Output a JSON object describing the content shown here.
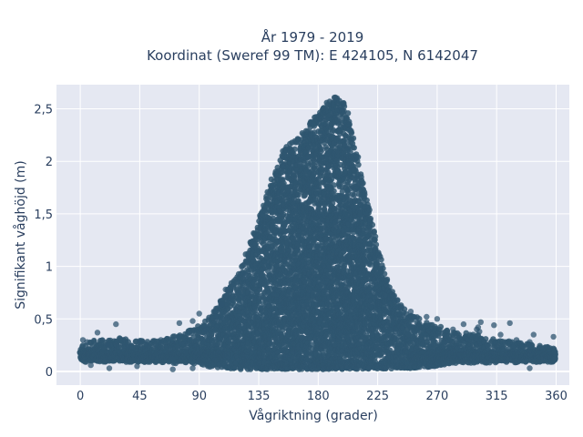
{
  "chart_data": {
    "type": "scatter",
    "title_lines": [
      "År 1979 - 2019",
      "Koordinat (Sweref 99 TM): E 424105, N 6142047"
    ],
    "xlabel": "Vågriktning (grader)",
    "ylabel": "Signifikant våghöjd (m)",
    "xlim": [
      -18,
      370
    ],
    "ylim": [
      -0.13,
      2.73
    ],
    "x_ticks": [
      0,
      45,
      90,
      135,
      180,
      225,
      270,
      315,
      360
    ],
    "x_tick_labels": [
      "0",
      "45",
      "90",
      "135",
      "180",
      "225",
      "270",
      "315",
      "360"
    ],
    "y_ticks": [
      0,
      0.5,
      1,
      1.5,
      2,
      2.5
    ],
    "y_tick_labels": [
      "0",
      "0,5",
      "1",
      "1,5",
      "2",
      "2,5"
    ],
    "grid": true,
    "marker_color": "#2f5670",
    "plot_background": "#e5e8f2",
    "envelope_upper": [
      [
        0,
        0.24
      ],
      [
        10,
        0.3
      ],
      [
        20,
        0.3
      ],
      [
        30,
        0.32
      ],
      [
        45,
        0.3
      ],
      [
        60,
        0.3
      ],
      [
        75,
        0.35
      ],
      [
        90,
        0.45
      ],
      [
        100,
        0.55
      ],
      [
        110,
        0.75
      ],
      [
        120,
        0.95
      ],
      [
        128,
        1.2
      ],
      [
        135,
        1.45
      ],
      [
        140,
        1.65
      ],
      [
        145,
        1.85
      ],
      [
        150,
        2.0
      ],
      [
        155,
        2.15
      ],
      [
        160,
        2.2
      ],
      [
        165,
        2.25
      ],
      [
        170,
        2.3
      ],
      [
        175,
        2.4
      ],
      [
        180,
        2.45
      ],
      [
        185,
        2.55
      ],
      [
        190,
        2.6
      ],
      [
        195,
        2.62
      ],
      [
        200,
        2.55
      ],
      [
        205,
        2.35
      ],
      [
        210,
        2.05
      ],
      [
        215,
        1.75
      ],
      [
        220,
        1.45
      ],
      [
        225,
        1.2
      ],
      [
        230,
        0.95
      ],
      [
        235,
        0.8
      ],
      [
        240,
        0.68
      ],
      [
        245,
        0.6
      ],
      [
        250,
        0.55
      ],
      [
        260,
        0.48
      ],
      [
        270,
        0.45
      ],
      [
        280,
        0.38
      ],
      [
        290,
        0.37
      ],
      [
        300,
        0.35
      ],
      [
        315,
        0.3
      ],
      [
        330,
        0.28
      ],
      [
        345,
        0.25
      ],
      [
        360,
        0.22
      ]
    ],
    "envelope_lower": [
      [
        0,
        0.09
      ],
      [
        45,
        0.09
      ],
      [
        90,
        0.07
      ],
      [
        100,
        0.04
      ],
      [
        120,
        0.02
      ],
      [
        180,
        0.02
      ],
      [
        250,
        0.03
      ],
      [
        270,
        0.05
      ],
      [
        290,
        0.08
      ],
      [
        360,
        0.09
      ]
    ],
    "outliers": [
      [
        27,
        0.45
      ],
      [
        13,
        0.37
      ],
      [
        2,
        0.3
      ],
      [
        5,
        0.28
      ],
      [
        21,
        0.25
      ],
      [
        36,
        0.25
      ],
      [
        45,
        0.28
      ],
      [
        50,
        0.26
      ],
      [
        61,
        0.3
      ],
      [
        75,
        0.46
      ],
      [
        85,
        0.48
      ],
      [
        90,
        0.55
      ],
      [
        95,
        0.4
      ],
      [
        107,
        0.64
      ],
      [
        110,
        0.78
      ],
      [
        112,
        0.78
      ],
      [
        125,
        0.92
      ],
      [
        240,
        0.68
      ],
      [
        250,
        0.57
      ],
      [
        262,
        0.52
      ],
      [
        270,
        0.5
      ],
      [
        282,
        0.4
      ],
      [
        290,
        0.45
      ],
      [
        300,
        0.4
      ],
      [
        301,
        0.42
      ],
      [
        302,
        0.38
      ],
      [
        303,
        0.47
      ],
      [
        313,
        0.44
      ],
      [
        318,
        0.35
      ],
      [
        325,
        0.46
      ],
      [
        330,
        0.3
      ],
      [
        340,
        0.28
      ],
      [
        343,
        0.35
      ],
      [
        358,
        0.33
      ],
      [
        22,
        0.03
      ],
      [
        43,
        0.05
      ],
      [
        70,
        0.02
      ],
      [
        85,
        0.03
      ],
      [
        340,
        0.03
      ],
      [
        8,
        0.06
      ]
    ]
  }
}
